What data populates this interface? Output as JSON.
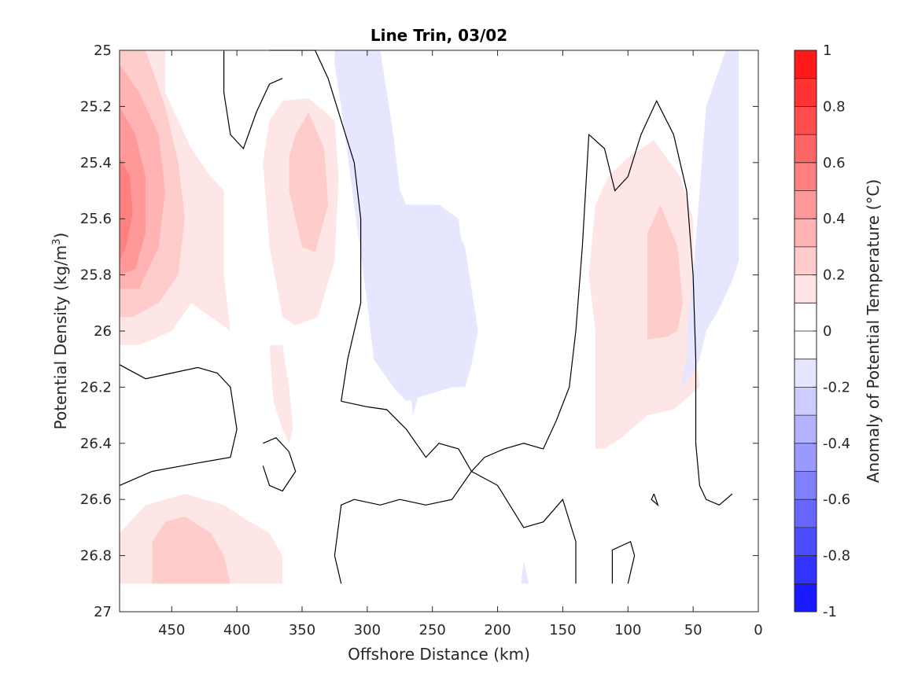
{
  "chart_data": {
    "type": "contourf",
    "title": "Line Trin, 03/02",
    "xlabel": "Offshore Distance (km)",
    "ylabel": "Potential Density (kg/m",
    "ylabel_sup": "3",
    "ylabel_close": ")",
    "xlim": [
      490,
      0
    ],
    "ylim": [
      25,
      27
    ],
    "x_reversed": true,
    "y_reversed": true,
    "xticks": [
      450,
      400,
      350,
      300,
      250,
      200,
      150,
      100,
      50,
      0
    ],
    "yticks": [
      25,
      25.2,
      25.4,
      25.6,
      25.8,
      26,
      26.2,
      26.4,
      26.6,
      26.8,
      27
    ],
    "ytick_labels": [
      "25",
      "25.2",
      "25.4",
      "25.6",
      "25.8",
      "26",
      "26.2",
      "26.4",
      "26.6",
      "26.8",
      "27"
    ],
    "colorbar": {
      "label": "Anomaly of Potential Temperature (°C)",
      "clim": [
        -1,
        1
      ],
      "step": 0.1,
      "ticks": [
        1,
        0.8,
        0.6,
        0.4,
        0.2,
        0,
        -0.2,
        -0.4,
        -0.6,
        -0.8,
        -1
      ],
      "tick_labels": [
        "1",
        "0.8",
        "0.6",
        "0.4",
        "0.2",
        "0",
        "-0.2",
        "-0.4",
        "-0.6",
        "-0.8",
        "-1"
      ]
    },
    "grid": false,
    "regions": [
      {
        "level": 0.1,
        "points": [
          [
            490,
            25.0
          ],
          [
            455,
            25.0
          ],
          [
            455,
            25.15
          ],
          [
            435,
            25.35
          ],
          [
            420,
            25.45
          ],
          [
            410,
            25.5
          ],
          [
            410,
            25.8
          ],
          [
            405,
            26.0
          ],
          [
            420,
            25.95
          ],
          [
            435,
            25.9
          ],
          [
            450,
            26.0
          ],
          [
            475,
            26.05
          ],
          [
            490,
            26.05
          ]
        ]
      },
      {
        "level": 0.2,
        "points": [
          [
            490,
            25.0
          ],
          [
            470,
            25.0
          ],
          [
            455,
            25.2
          ],
          [
            445,
            25.4
          ],
          [
            440,
            25.6
          ],
          [
            445,
            25.8
          ],
          [
            460,
            25.9
          ],
          [
            480,
            25.95
          ],
          [
            490,
            25.95
          ]
        ]
      },
      {
        "level": 0.3,
        "points": [
          [
            490,
            25.05
          ],
          [
            475,
            25.15
          ],
          [
            460,
            25.3
          ],
          [
            455,
            25.5
          ],
          [
            460,
            25.7
          ],
          [
            475,
            25.85
          ],
          [
            490,
            25.85
          ]
        ]
      },
      {
        "level": 0.4,
        "points": [
          [
            490,
            25.2
          ],
          [
            478,
            25.3
          ],
          [
            470,
            25.45
          ],
          [
            470,
            25.65
          ],
          [
            478,
            25.78
          ],
          [
            490,
            25.8
          ]
        ]
      },
      {
        "level": 0.5,
        "points": [
          [
            490,
            25.38
          ],
          [
            482,
            25.45
          ],
          [
            480,
            25.58
          ],
          [
            485,
            25.7
          ],
          [
            490,
            25.75
          ]
        ]
      },
      {
        "level": 0.1,
        "points": [
          [
            365,
            25.18
          ],
          [
            345,
            25.17
          ],
          [
            325,
            25.25
          ],
          [
            322,
            25.45
          ],
          [
            325,
            25.75
          ],
          [
            338,
            25.95
          ],
          [
            355,
            25.98
          ],
          [
            365,
            25.95
          ],
          [
            375,
            25.7
          ],
          [
            380,
            25.4
          ],
          [
            375,
            25.25
          ]
        ]
      },
      {
        "level": 0.2,
        "points": [
          [
            355,
            25.3
          ],
          [
            345,
            25.22
          ],
          [
            333,
            25.35
          ],
          [
            330,
            25.55
          ],
          [
            340,
            25.72
          ],
          [
            350,
            25.7
          ],
          [
            360,
            25.5
          ],
          [
            360,
            25.38
          ]
        ]
      },
      {
        "level": 0.1,
        "points": [
          [
            375,
            26.05
          ],
          [
            372,
            26.25
          ],
          [
            365,
            26.35
          ],
          [
            360,
            26.4
          ],
          [
            357,
            26.35
          ],
          [
            360,
            26.2
          ],
          [
            365,
            26.05
          ]
        ]
      },
      {
        "level": 0.1,
        "points": [
          [
            490,
            26.72
          ],
          [
            470,
            26.62
          ],
          [
            440,
            26.58
          ],
          [
            410,
            26.62
          ],
          [
            390,
            26.68
          ],
          [
            375,
            26.72
          ],
          [
            365,
            26.8
          ],
          [
            365,
            26.9
          ],
          [
            490,
            26.9
          ]
        ]
      },
      {
        "level": 0.2,
        "points": [
          [
            465,
            26.9
          ],
          [
            465,
            26.75
          ],
          [
            455,
            26.68
          ],
          [
            440,
            26.66
          ],
          [
            420,
            26.72
          ],
          [
            410,
            26.8
          ],
          [
            405,
            26.9
          ]
        ]
      },
      {
        "level": 0.1,
        "points": [
          [
            370,
            26.88
          ],
          [
            365,
            26.9
          ],
          [
            370,
            26.9
          ]
        ]
      },
      {
        "level": 0.1,
        "points": [
          [
            125,
            25.55
          ],
          [
            115,
            25.45
          ],
          [
            100,
            25.38
          ],
          [
            80,
            25.32
          ],
          [
            60,
            25.45
          ],
          [
            50,
            25.6
          ],
          [
            50,
            26.0
          ],
          [
            45,
            26.2
          ],
          [
            65,
            26.28
          ],
          [
            85,
            26.3
          ],
          [
            105,
            26.38
          ],
          [
            118,
            26.42
          ],
          [
            125,
            26.42
          ],
          [
            125,
            26.0
          ],
          [
            130,
            25.8
          ]
        ]
      },
      {
        "level": 0.2,
        "points": [
          [
            85,
            25.65
          ],
          [
            75,
            25.55
          ],
          [
            62,
            25.7
          ],
          [
            58,
            25.9
          ],
          [
            62,
            26.0
          ],
          [
            70,
            26.02
          ],
          [
            85,
            26.03
          ]
        ]
      },
      {
        "level": -0.1,
        "points": [
          [
            320,
            25.0
          ],
          [
            310,
            25.08
          ],
          [
            305,
            25.06
          ],
          [
            300,
            25.0
          ]
        ]
      },
      {
        "level": -0.1,
        "points": [
          [
            290,
            25.0
          ],
          [
            285,
            25.15
          ],
          [
            280,
            25.3
          ],
          [
            275,
            25.5
          ],
          [
            265,
            25.6
          ],
          [
            250,
            25.55
          ],
          [
            235,
            25.6
          ],
          [
            225,
            25.7
          ],
          [
            220,
            25.85
          ],
          [
            215,
            26.0
          ],
          [
            220,
            26.12
          ],
          [
            225,
            26.2
          ],
          [
            240,
            26.2
          ],
          [
            260,
            26.22
          ],
          [
            265,
            26.3
          ],
          [
            270,
            26.05
          ],
          [
            265,
            25.85
          ],
          [
            290,
            25.55
          ],
          [
            300,
            25.4
          ],
          [
            310,
            25.3
          ],
          [
            315,
            25.1
          ],
          [
            305,
            25.0
          ]
        ]
      },
      {
        "level": -0.1,
        "points": [
          [
            300,
            25.0
          ],
          [
            295,
            25.15
          ],
          [
            290,
            25.35
          ],
          [
            280,
            25.55
          ],
          [
            260,
            25.55
          ],
          [
            245,
            25.55
          ],
          [
            230,
            25.6
          ],
          [
            225,
            25.8
          ],
          [
            222,
            25.95
          ],
          [
            225,
            26.15
          ],
          [
            235,
            26.2
          ],
          [
            270,
            26.25
          ],
          [
            280,
            26.2
          ],
          [
            295,
            26.1
          ],
          [
            300,
            25.9
          ],
          [
            310,
            25.55
          ],
          [
            320,
            25.2
          ],
          [
            325,
            25.05
          ],
          [
            325,
            25.0
          ]
        ]
      },
      {
        "level": -0.1,
        "points": [
          [
            25,
            25.0
          ],
          [
            40,
            25.2
          ],
          [
            45,
            25.5
          ],
          [
            50,
            25.8
          ],
          [
            55,
            26.0
          ],
          [
            55,
            26.1
          ],
          [
            60,
            26.2
          ],
          [
            50,
            26.15
          ],
          [
            45,
            26.1
          ],
          [
            40,
            26.0
          ],
          [
            30,
            25.92
          ],
          [
            20,
            25.82
          ],
          [
            15,
            25.75
          ],
          [
            15,
            25.0
          ]
        ]
      },
      {
        "level": -0.1,
        "points": [
          [
            180,
            26.82
          ],
          [
            182,
            26.9
          ],
          [
            176,
            26.9
          ]
        ]
      }
    ],
    "contours": [
      {
        "level": 0,
        "points": [
          [
            375,
            25.0
          ],
          [
            340,
            25.0
          ],
          [
            330,
            25.1
          ],
          [
            320,
            25.25
          ],
          [
            310,
            25.4
          ],
          [
            305,
            25.6
          ],
          [
            305,
            25.9
          ],
          [
            310,
            26.0
          ],
          [
            315,
            26.1
          ],
          [
            320,
            26.25
          ]
        ]
      },
      {
        "level": 0,
        "points": [
          [
            410,
            25.0
          ],
          [
            410,
            25.15
          ],
          [
            405,
            25.3
          ],
          [
            395,
            25.35
          ],
          [
            385,
            25.22
          ],
          [
            375,
            25.12
          ],
          [
            365,
            25.1
          ]
        ]
      },
      {
        "level": 0,
        "points": [
          [
            490,
            26.12
          ],
          [
            470,
            26.17
          ],
          [
            450,
            26.15
          ],
          [
            430,
            26.13
          ],
          [
            415,
            26.15
          ],
          [
            405,
            26.2
          ],
          [
            400,
            26.35
          ],
          [
            405,
            26.45
          ],
          [
            430,
            26.47
          ],
          [
            465,
            26.5
          ],
          [
            490,
            26.55
          ]
        ]
      },
      {
        "level": 0,
        "points": [
          [
            380,
            26.4
          ],
          [
            370,
            26.38
          ],
          [
            360,
            26.43
          ],
          [
            355,
            26.5
          ],
          [
            365,
            26.57
          ],
          [
            375,
            26.55
          ],
          [
            380,
            26.48
          ]
        ]
      },
      {
        "level": 0,
        "points": [
          [
            320,
            26.9
          ],
          [
            325,
            26.8
          ],
          [
            320,
            26.62
          ],
          [
            310,
            26.6
          ],
          [
            290,
            26.62
          ],
          [
            275,
            26.6
          ],
          [
            255,
            26.62
          ],
          [
            235,
            26.6
          ],
          [
            220,
            26.5
          ],
          [
            200,
            26.55
          ],
          [
            180,
            26.7
          ],
          [
            165,
            26.68
          ],
          [
            150,
            26.6
          ],
          [
            140,
            26.75
          ],
          [
            140,
            26.9
          ]
        ]
      },
      {
        "level": 0,
        "points": [
          [
            320,
            26.25
          ],
          [
            300,
            26.27
          ],
          [
            285,
            26.28
          ],
          [
            270,
            26.35
          ],
          [
            255,
            26.45
          ],
          [
            245,
            26.4
          ],
          [
            230,
            26.42
          ],
          [
            220,
            26.5
          ],
          [
            210,
            26.45
          ],
          [
            195,
            26.42
          ],
          [
            180,
            26.4
          ],
          [
            165,
            26.42
          ],
          [
            155,
            26.32
          ],
          [
            145,
            26.2
          ],
          [
            140,
            26.0
          ],
          [
            135,
            25.7
          ],
          [
            130,
            25.3
          ],
          [
            118,
            25.35
          ],
          [
            110,
            25.5
          ],
          [
            100,
            25.45
          ],
          [
            90,
            25.3
          ],
          [
            78,
            25.18
          ],
          [
            65,
            25.3
          ],
          [
            55,
            25.5
          ],
          [
            50,
            25.8
          ],
          [
            48,
            26.1
          ],
          [
            48,
            26.4
          ],
          [
            45,
            26.55
          ],
          [
            40,
            26.6
          ],
          [
            30,
            26.62
          ],
          [
            20,
            26.58
          ]
        ]
      },
      {
        "level": 0,
        "points": [
          [
            112,
            26.9
          ],
          [
            112,
            26.78
          ],
          [
            98,
            26.75
          ],
          [
            95,
            26.8
          ],
          [
            100,
            26.9
          ]
        ]
      },
      {
        "level": 0,
        "points": [
          [
            80,
            26.58
          ],
          [
            77,
            26.62
          ],
          [
            82,
            26.6
          ],
          [
            80,
            26.58
          ]
        ]
      }
    ]
  }
}
